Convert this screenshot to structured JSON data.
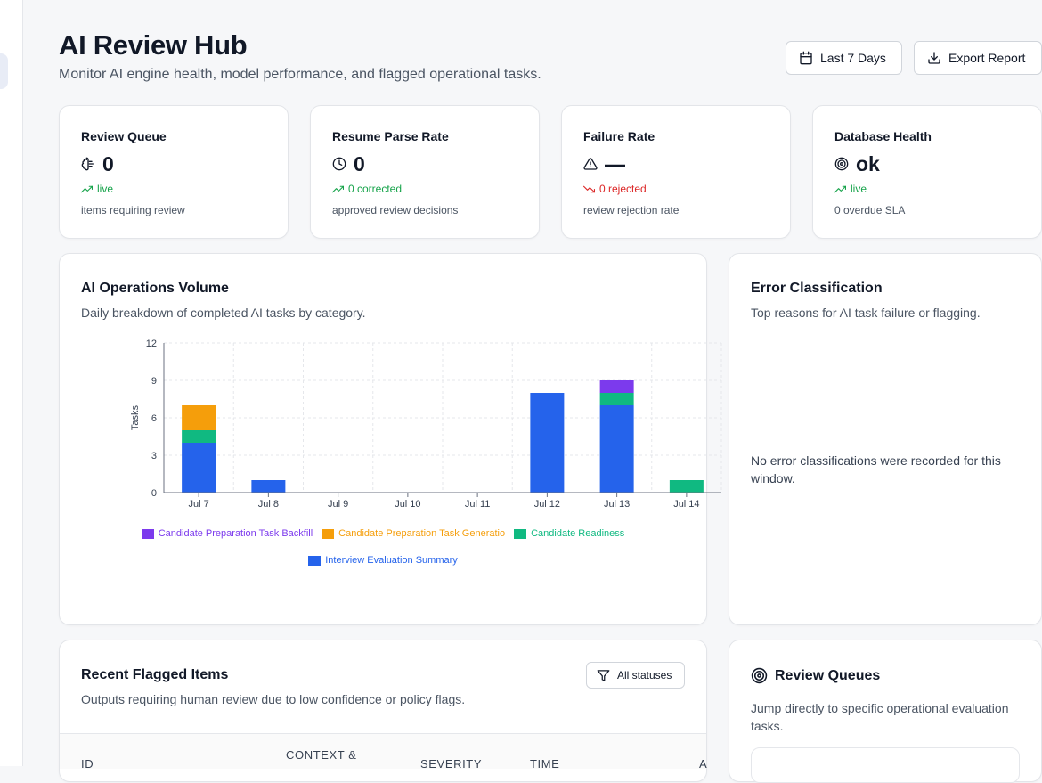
{
  "header": {
    "title": "AI Review Hub",
    "subtitle": "Monitor AI engine health, model performance, and flagged operational tasks.",
    "date_range_label": "Last 7 Days",
    "export_label": "Export Report"
  },
  "stats": [
    {
      "label": "Review Queue",
      "icon": "brain-icon",
      "value": "0",
      "trend": "live",
      "trend_color": "#16a34a",
      "footnote": "items requiring review"
    },
    {
      "label": "Resume Parse Rate",
      "icon": "clock-icon",
      "value": "0",
      "trend": "0 corrected",
      "trend_color": "#16a34a",
      "footnote": "approved review decisions"
    },
    {
      "label": "Failure Rate",
      "icon": "alert-triangle-icon",
      "value": "—",
      "trend": "0 rejected",
      "trend_color": "#dc2626",
      "footnote": "review rejection rate"
    },
    {
      "label": "Database Health",
      "icon": "target-icon",
      "value": "ok",
      "trend": "live",
      "trend_color": "#16a34a",
      "footnote": "0 overdue SLA"
    }
  ],
  "ops_volume": {
    "title": "AI Operations Volume",
    "subtitle": "Daily breakdown of completed AI tasks by category."
  },
  "chart_data": {
    "type": "bar",
    "stacked": true,
    "categories": [
      "Jul 7",
      "Jul 8",
      "Jul 9",
      "Jul 10",
      "Jul 11",
      "Jul 12",
      "Jul 13",
      "Jul 14"
    ],
    "series": [
      {
        "name": "Interview Evaluation Summary",
        "color": "#2563eb",
        "values": [
          4,
          1,
          0,
          0,
          0,
          8,
          7,
          0
        ]
      },
      {
        "name": "Candidate Readiness",
        "color": "#10b981",
        "values": [
          1,
          0,
          0,
          0,
          0,
          0,
          1,
          1
        ]
      },
      {
        "name": "Candidate Preparation Task Generatio",
        "color": "#f59e0b",
        "values": [
          2,
          0,
          0,
          0,
          0,
          0,
          0,
          0
        ]
      },
      {
        "name": "Candidate Preparation Task Backfill",
        "color": "#7c3aed",
        "values": [
          0,
          0,
          0,
          0,
          0,
          0,
          1,
          0
        ]
      }
    ],
    "legend_order": [
      3,
      2,
      1,
      0
    ],
    "ylabel": "Tasks",
    "xlabel": "",
    "ylim": [
      0,
      12
    ],
    "yticks": [
      0,
      3,
      6,
      9,
      12
    ],
    "grid": true,
    "legend_position": "bottom"
  },
  "error_classification": {
    "title": "Error Classification",
    "subtitle": "Top reasons for AI task failure or flagging.",
    "empty_message": "No error classifications were recorded for this window."
  },
  "flagged_items": {
    "title": "Recent Flagged Items",
    "subtitle": "Outputs requiring human review due to low confidence or policy flags.",
    "filter_label": "All statuses",
    "columns": [
      "ID",
      "CONTEXT &",
      "SEVERITY",
      "TIME",
      "A"
    ]
  },
  "review_queues": {
    "title": "Review Queues",
    "subtitle": "Jump directly to specific operational evaluation tasks."
  }
}
